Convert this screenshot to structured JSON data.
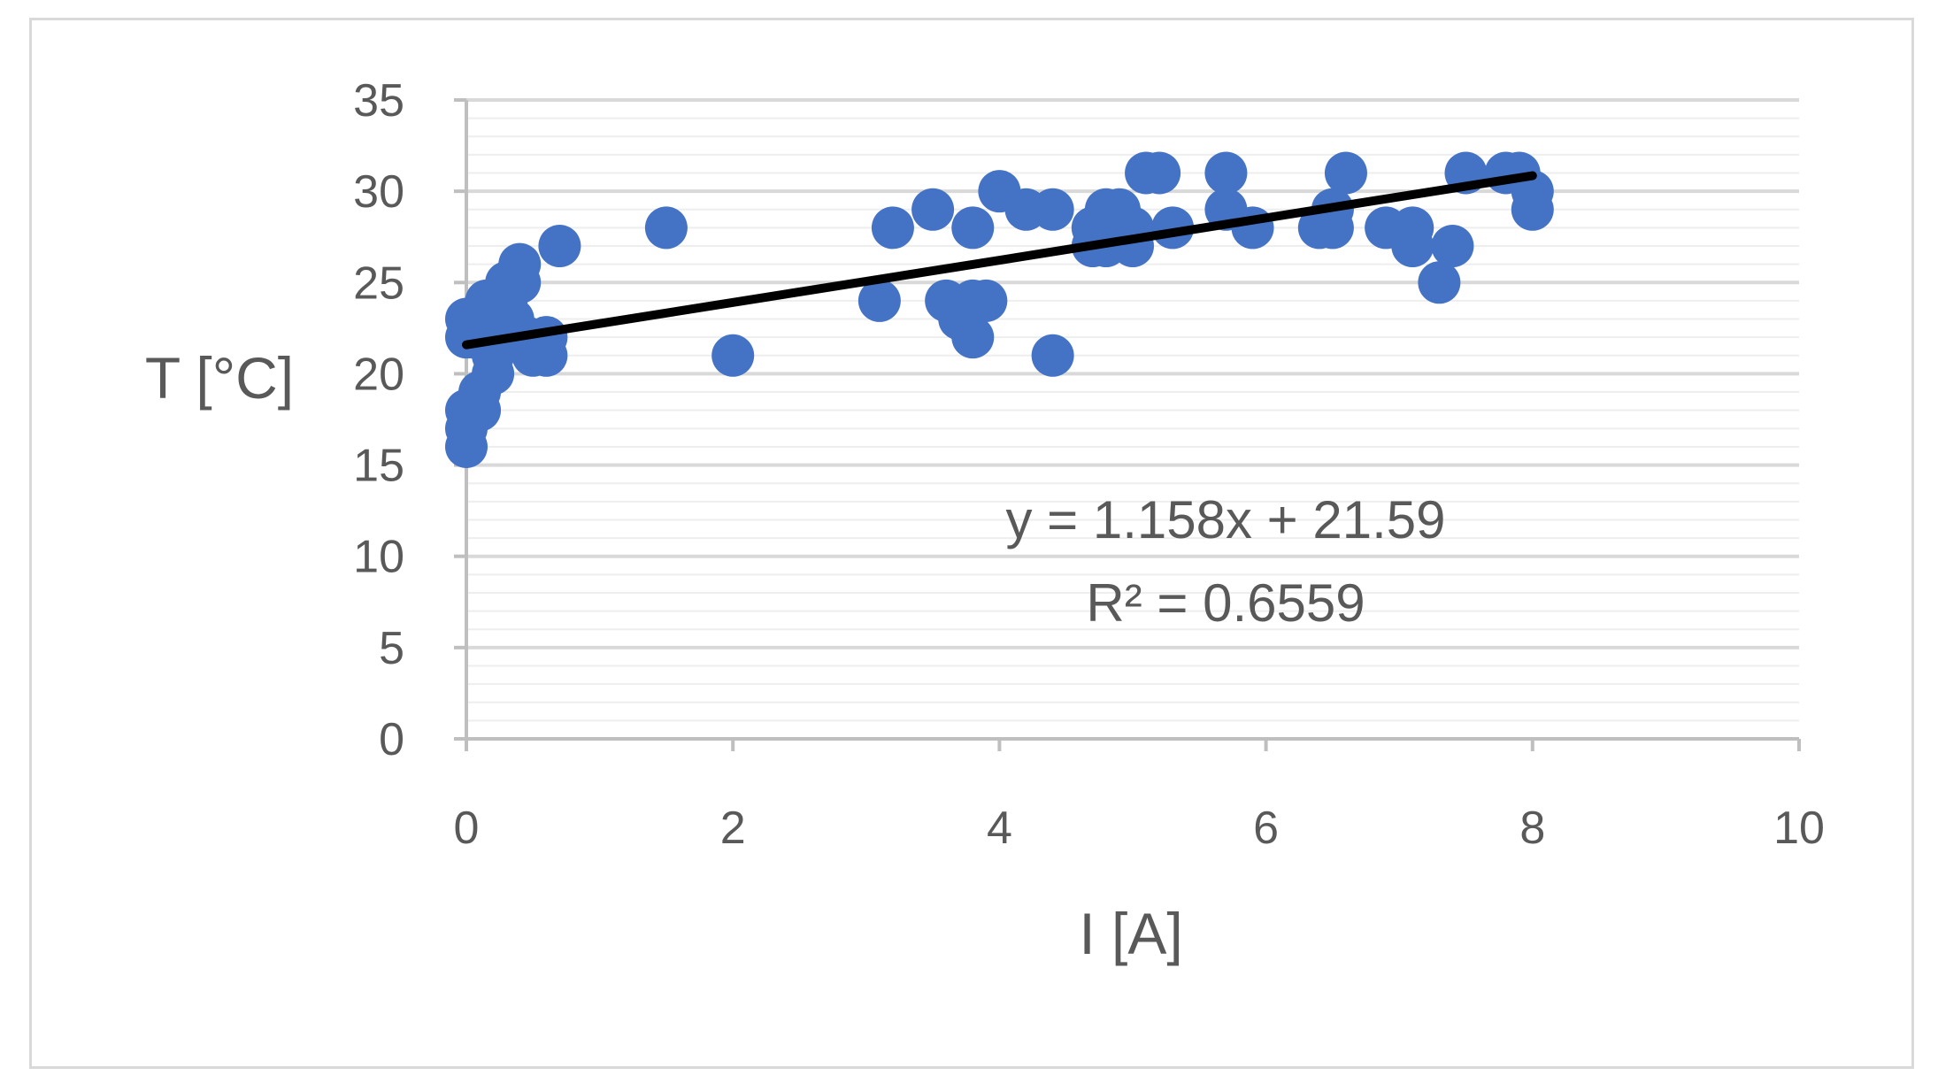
{
  "chart_data": {
    "type": "scatter",
    "title": "",
    "xlabel": "I [A]",
    "ylabel": "T [°C]",
    "xlim": [
      0,
      10
    ],
    "ylim": [
      0,
      35
    ],
    "xticks": [
      "0",
      "2",
      "4",
      "6",
      "8",
      "10"
    ],
    "yticks": [
      "0",
      "5",
      "10",
      "15",
      "20",
      "25",
      "30",
      "35"
    ],
    "grid": true,
    "legend": "none",
    "colors": {
      "points": "#4472C4",
      "trendline": "#000000",
      "axis": "#bfbfbf",
      "grid": "#d9d9d9"
    },
    "series": [
      {
        "points": [
          [
            0,
            16
          ],
          [
            0,
            17
          ],
          [
            0,
            18
          ],
          [
            0,
            22
          ],
          [
            0,
            23
          ],
          [
            0.05,
            22
          ],
          [
            0.1,
            18
          ],
          [
            0.1,
            19
          ],
          [
            0.15,
            24
          ],
          [
            0.15,
            23
          ],
          [
            0.2,
            20
          ],
          [
            0.2,
            21
          ],
          [
            0.25,
            22
          ],
          [
            0.3,
            24
          ],
          [
            0.3,
            25
          ],
          [
            0.35,
            23
          ],
          [
            0.4,
            26
          ],
          [
            0.4,
            25
          ],
          [
            0.45,
            22
          ],
          [
            0.5,
            21
          ],
          [
            0.6,
            22
          ],
          [
            0.6,
            21
          ],
          [
            0.7,
            27
          ],
          [
            1.5,
            28
          ],
          [
            2.0,
            21
          ],
          [
            3.1,
            24
          ],
          [
            3.2,
            28
          ],
          [
            3.5,
            29
          ],
          [
            3.6,
            24
          ],
          [
            3.7,
            23
          ],
          [
            3.8,
            22
          ],
          [
            3.8,
            24
          ],
          [
            3.8,
            28
          ],
          [
            3.9,
            24
          ],
          [
            4.0,
            30
          ],
          [
            4.2,
            29
          ],
          [
            4.4,
            29
          ],
          [
            4.4,
            21
          ],
          [
            4.7,
            28
          ],
          [
            4.7,
            27
          ],
          [
            4.8,
            29
          ],
          [
            4.8,
            27
          ],
          [
            4.9,
            29
          ],
          [
            4.9,
            28
          ],
          [
            5.0,
            27
          ],
          [
            5.0,
            28
          ],
          [
            5.1,
            31
          ],
          [
            5.2,
            31
          ],
          [
            5.3,
            28
          ],
          [
            5.7,
            31
          ],
          [
            5.7,
            29
          ],
          [
            5.9,
            28
          ],
          [
            6.4,
            28
          ],
          [
            6.5,
            29
          ],
          [
            6.5,
            28
          ],
          [
            6.6,
            31
          ],
          [
            6.9,
            28
          ],
          [
            7.1,
            27
          ],
          [
            7.1,
            28
          ],
          [
            7.3,
            25
          ],
          [
            7.4,
            27
          ],
          [
            7.5,
            31
          ],
          [
            7.8,
            31
          ],
          [
            7.9,
            31
          ],
          [
            8.0,
            30
          ],
          [
            8.0,
            29
          ]
        ]
      }
    ],
    "trendline": {
      "type": "linear",
      "slope": 1.158,
      "intercept": 21.59,
      "x_range": [
        0,
        8
      ]
    },
    "annotations": {
      "equation": "y = 1.158x + 21.59",
      "r_squared": "R² = 0.6559"
    }
  }
}
